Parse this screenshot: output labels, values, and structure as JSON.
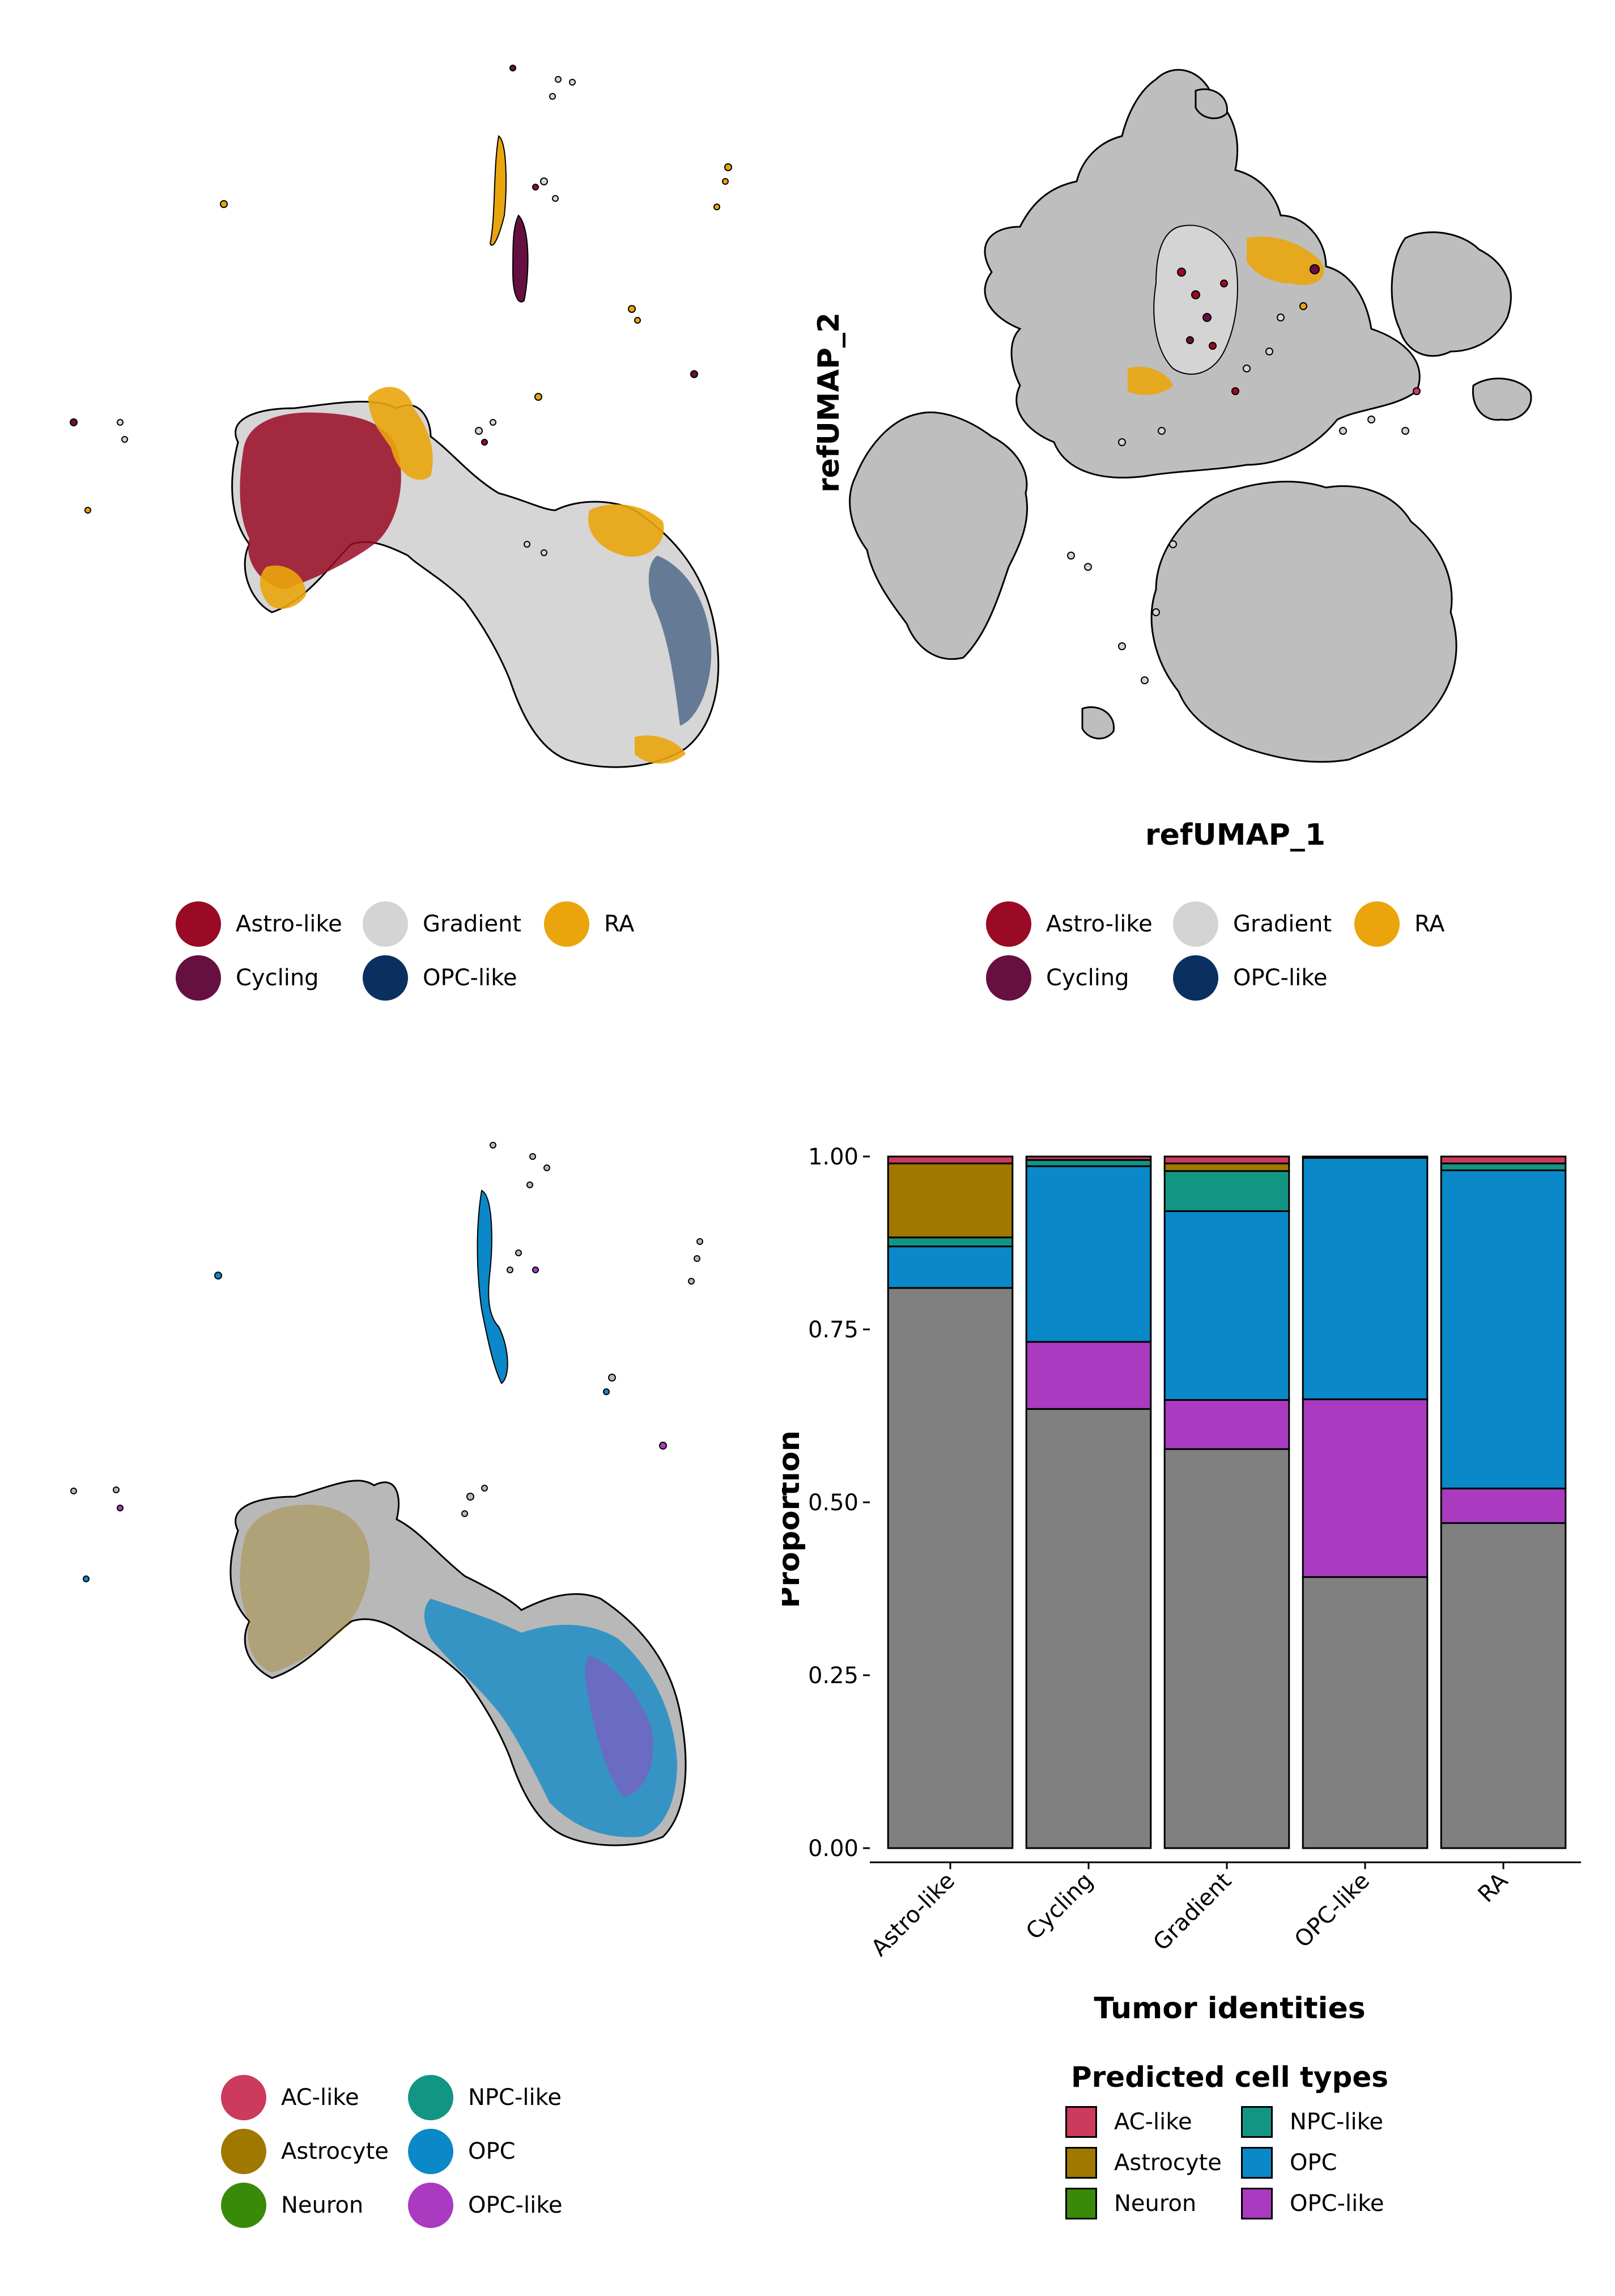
{
  "umap_top_left": {
    "legend": [
      {
        "label": "Astro-like",
        "color": "#9a0a24"
      },
      {
        "label": "Gradient",
        "color": "#d4d4d4"
      },
      {
        "label": "RA",
        "color": "#eaa50d"
      },
      {
        "label": "Cycling",
        "color": "#651040"
      },
      {
        "label": "OPC-like",
        "color": "#0a3060"
      }
    ]
  },
  "umap_top_right": {
    "xlabel": "refUMAP_1",
    "ylabel": "refUMAP_2",
    "legend": [
      {
        "label": "Astro-like",
        "color": "#9a0a24"
      },
      {
        "label": "Gradient",
        "color": "#d4d4d4"
      },
      {
        "label": "RA",
        "color": "#eaa50d"
      },
      {
        "label": "Cycling",
        "color": "#651040"
      },
      {
        "label": "OPC-like",
        "color": "#0a3060"
      }
    ]
  },
  "umap_bottom_left": {
    "legend": [
      {
        "label": "AC-like",
        "color": "#cc3a5c"
      },
      {
        "label": "NPC-like",
        "color": "#139584"
      },
      {
        "label": "Astrocyte",
        "color": "#a07800"
      },
      {
        "label": "OPC",
        "color": "#0a88c8"
      },
      {
        "label": "Neuron",
        "color": "#3a8a0a"
      },
      {
        "label": "OPC-like",
        "color": "#aa3ac0"
      }
    ]
  },
  "chart_data": {
    "type": "bar",
    "stacked": true,
    "xlabel": "Tumor identities",
    "ylabel": "Proportion",
    "ylim": [
      0,
      1
    ],
    "yticks": [
      "0.00",
      "0.25",
      "0.50",
      "0.75",
      "1.00"
    ],
    "categories": [
      "Astro-like",
      "Cycling",
      "Gradient",
      "OPC-like",
      "RA"
    ],
    "series": [
      {
        "name": "",
        "color": "#808080",
        "values": [
          0.81,
          0.635,
          0.577,
          0.392,
          0.47
        ]
      },
      {
        "name": "OPC-like",
        "color": "#aa3ac0",
        "values": [
          0.0,
          0.097,
          0.071,
          0.257,
          0.05
        ]
      },
      {
        "name": "OPC",
        "color": "#0a88c8",
        "values": [
          0.06,
          0.254,
          0.273,
          0.349,
          0.46
        ]
      },
      {
        "name": "Neuron",
        "color": "#3a8a0a",
        "values": [
          0.0,
          0.0,
          0.0,
          0.0,
          0.0
        ]
      },
      {
        "name": "NPC-like",
        "color": "#139584",
        "values": [
          0.013,
          0.009,
          0.058,
          0.002,
          0.01
        ]
      },
      {
        "name": "Astrocyte",
        "color": "#a07800",
        "values": [
          0.107,
          0.0,
          0.011,
          0.0,
          0.0
        ]
      },
      {
        "name": "AC-like",
        "color": "#cc3a5c",
        "values": [
          0.01,
          0.005,
          0.01,
          0.0,
          0.01
        ]
      }
    ],
    "legend": {
      "title": "Predicted cell types",
      "placement": "bottom",
      "items": [
        {
          "label": "AC-like",
          "color": "#cc3a5c"
        },
        {
          "label": "NPC-like",
          "color": "#139584"
        },
        {
          "label": "Astrocyte",
          "color": "#a07800"
        },
        {
          "label": "OPC",
          "color": "#0a88c8"
        },
        {
          "label": "Neuron",
          "color": "#3a8a0a"
        },
        {
          "label": "OPC-like",
          "color": "#aa3ac0"
        }
      ]
    }
  }
}
